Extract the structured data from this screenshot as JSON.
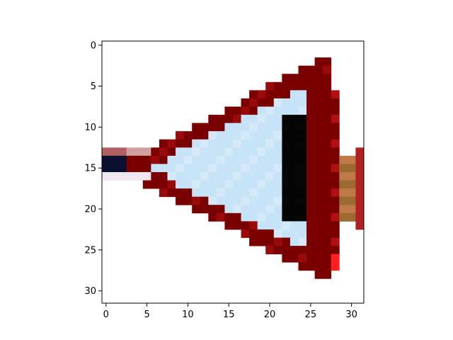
{
  "chart_data": {
    "type": "heatmap",
    "title": "",
    "xlabel": "",
    "ylabel": "",
    "xlim": [
      -0.5,
      31.5
    ],
    "ylim": [
      31.5,
      -0.5
    ],
    "x_ticks": [
      0,
      5,
      10,
      15,
      20,
      25,
      30
    ],
    "y_ticks": [
      0,
      5,
      10,
      15,
      20,
      25,
      30
    ],
    "grid": false,
    "colors": {
      "background": "#ffffff",
      "dark_red": "#7a0000",
      "red": "#9b0a0a",
      "light_blue": "#c7e3f7",
      "black": "#050505"
    }
  }
}
